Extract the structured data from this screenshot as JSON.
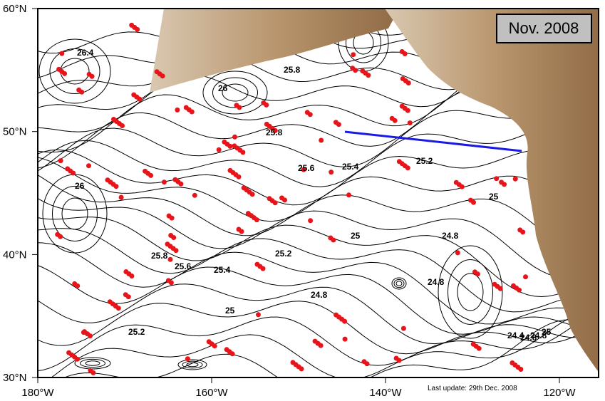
{
  "map": {
    "title": "Nov. 2008",
    "footer": "Last update: 29th Dec. 2008",
    "lat_labels": [
      "60°N",
      "50°N",
      "40°N",
      "30°N"
    ],
    "lon_labels": [
      "180°W",
      "160°W",
      "140°W",
      "120°W"
    ],
    "contour_labels": [
      "26.4",
      "26",
      "25.8",
      "25.8",
      "25.8",
      "25.6",
      "25.6",
      "25.4",
      "25.4",
      "25.2",
      "25.2",
      "25.2",
      "25",
      "25",
      "25",
      "24.8",
      "24.8",
      "24.8",
      "26",
      "24.4",
      "24.6",
      "24.8",
      "25"
    ]
  }
}
